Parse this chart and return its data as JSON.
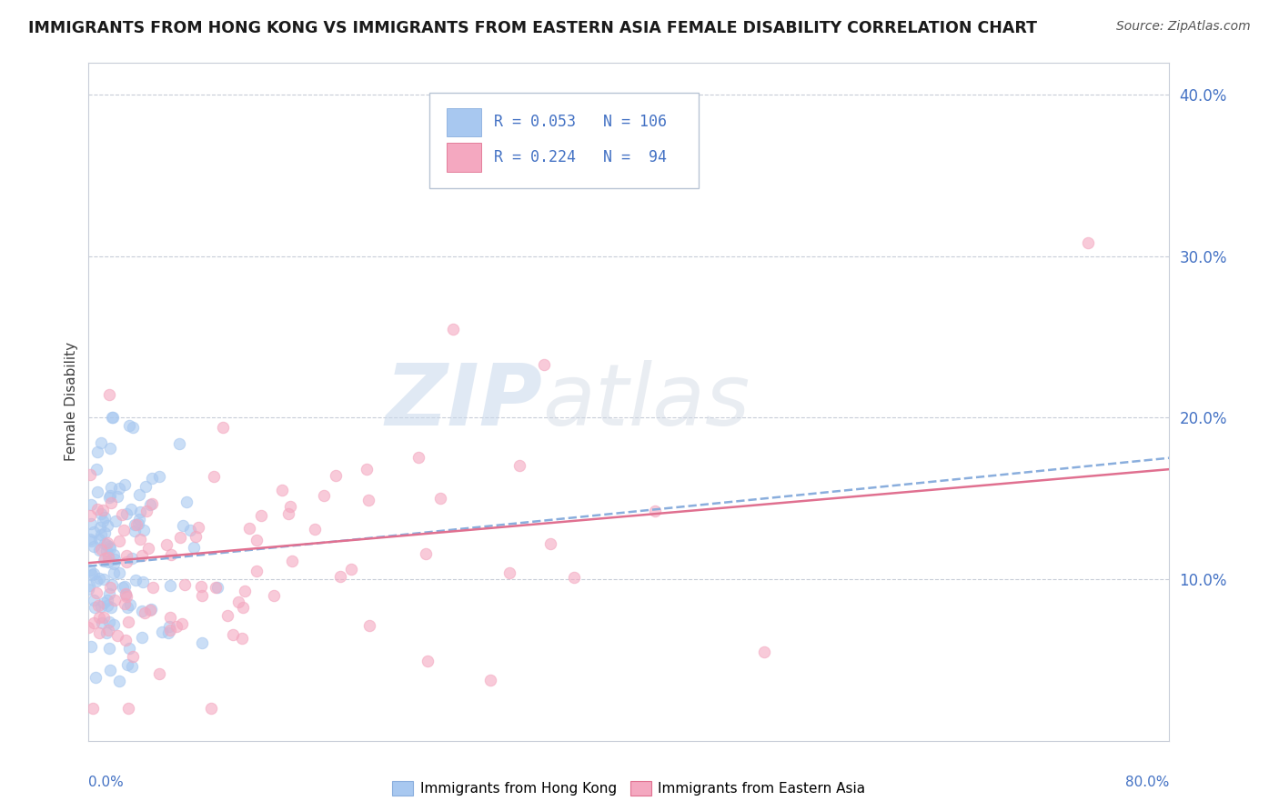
{
  "title": "IMMIGRANTS FROM HONG KONG VS IMMIGRANTS FROM EASTERN ASIA FEMALE DISABILITY CORRELATION CHART",
  "source": "Source: ZipAtlas.com",
  "ylabel": "Female Disability",
  "xmin": 0.0,
  "xmax": 0.8,
  "ymin": 0.0,
  "ymax": 0.42,
  "yticks": [
    0.1,
    0.2,
    0.3,
    0.4
  ],
  "ytick_labels": [
    "10.0%",
    "20.0%",
    "30.0%",
    "40.0%"
  ],
  "color_hk": "#A8C8F0",
  "color_ea": "#F4A8C0",
  "color_hk_line": "#8AAEDD",
  "color_ea_line": "#E07090",
  "watermark_zip": "ZIP",
  "watermark_atlas": "atlas",
  "legend_r1": "R = 0.053",
  "legend_n1": "N = 106",
  "legend_r2": "R = 0.224",
  "legend_n2": "N =  94",
  "hk_trend": [
    0.108,
    0.175
  ],
  "ea_trend": [
    0.11,
    0.168
  ],
  "ea_trend_xmax": 0.8
}
